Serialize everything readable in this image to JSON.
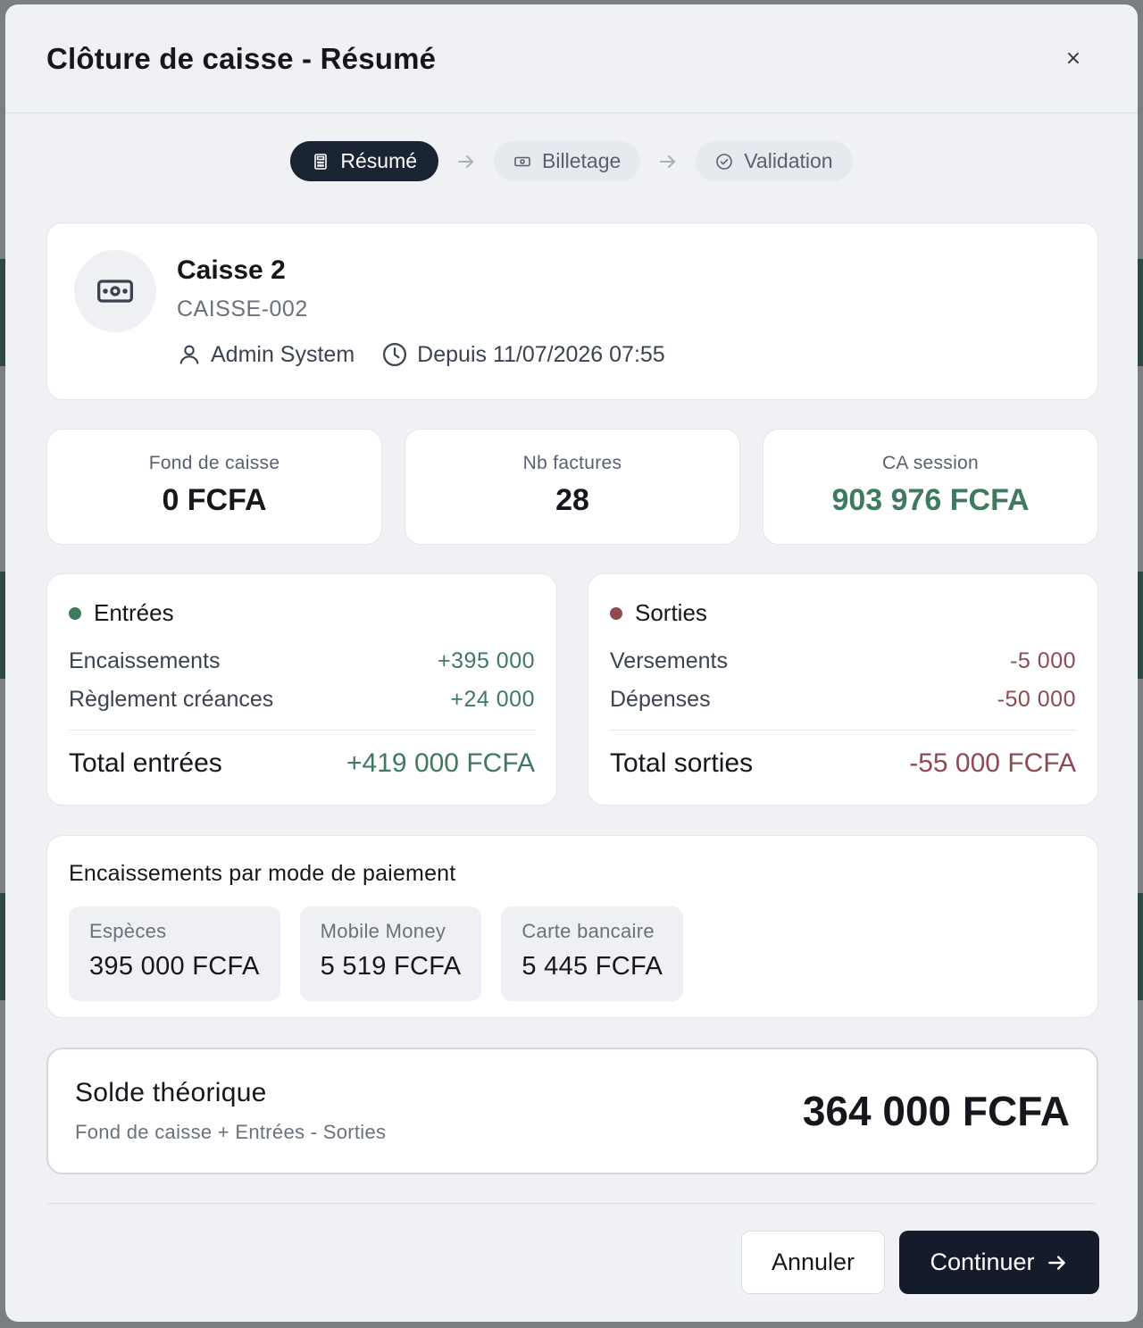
{
  "modal": {
    "title": "Clôture de caisse - Résumé",
    "close_symbol": "×"
  },
  "stepper": {
    "steps": [
      {
        "label": "Résumé",
        "icon": "calculator-icon",
        "active": true
      },
      {
        "label": "Billetage",
        "icon": "banknote-icon",
        "active": false
      },
      {
        "label": "Validation",
        "icon": "check-circle-icon",
        "active": false
      }
    ]
  },
  "register": {
    "name": "Caisse 2",
    "code": "CAISSE-002",
    "user": "Admin System",
    "since": "Depuis 11/07/2026 07:55"
  },
  "stats": [
    {
      "label": "Fond de caisse",
      "value": "0 FCFA"
    },
    {
      "label": "Nb factures",
      "value": "28"
    },
    {
      "label": "CA session",
      "value": "903 976 FCFA"
    }
  ],
  "inflows": {
    "title": "Entrées",
    "rows": [
      {
        "label": "Encaissements",
        "value": "+395 000"
      },
      {
        "label": "Règlement créances",
        "value": "+24 000"
      }
    ],
    "total_label": "Total entrées",
    "total_value": "+419 000 FCFA"
  },
  "outflows": {
    "title": "Sorties",
    "rows": [
      {
        "label": "Versements",
        "value": "-5 000"
      },
      {
        "label": "Dépenses",
        "value": "-50 000"
      }
    ],
    "total_label": "Total sorties",
    "total_value": "-55 000 FCFA"
  },
  "payments": {
    "title": "Encaissements par mode de paiement",
    "modes": [
      {
        "label": "Espèces",
        "value": "395 000 FCFA"
      },
      {
        "label": "Mobile Money",
        "value": "5 519 FCFA"
      },
      {
        "label": "Carte bancaire",
        "value": "5 445 FCFA"
      }
    ]
  },
  "balance": {
    "title": "Solde théorique",
    "formula": "Fond de caisse + Entrées - Sorties",
    "value": "364 000 FCFA"
  },
  "footer": {
    "cancel_label": "Annuler",
    "continue_label": "Continuer"
  },
  "colors": {
    "primary": "#141b2a",
    "positive": "#3f7a5f",
    "negative": "#8e4a50"
  }
}
